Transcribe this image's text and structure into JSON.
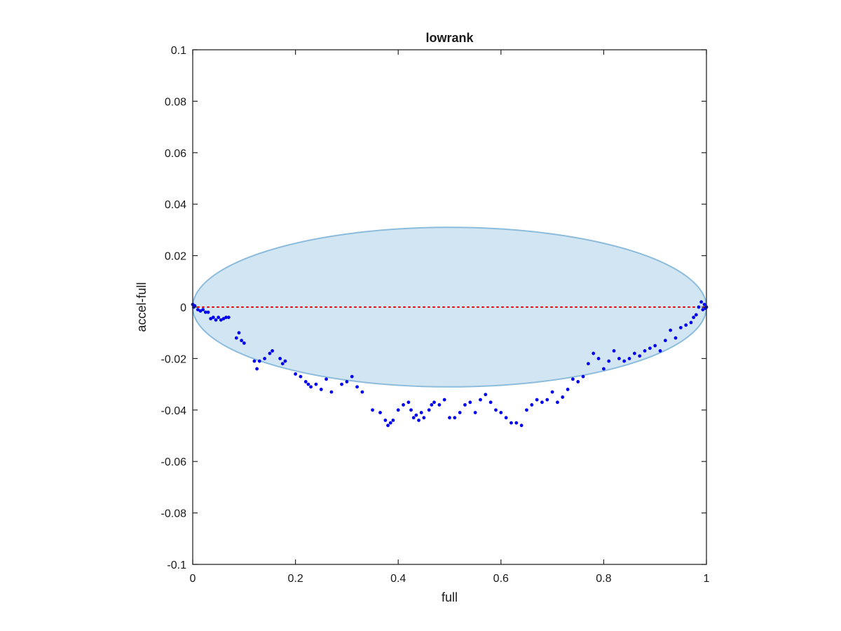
{
  "chart_data": {
    "type": "scatter",
    "title": "lowrank",
    "xlabel": "full",
    "ylabel": "accel-full",
    "xlim": [
      0,
      1
    ],
    "ylim": [
      -0.1,
      0.1
    ],
    "xticks": [
      0,
      0.2,
      0.4,
      0.6,
      0.8,
      1
    ],
    "xtick_labels": [
      "0",
      "0.2",
      "0.4",
      "0.6",
      "0.8",
      "1"
    ],
    "yticks": [
      -0.1,
      -0.08,
      -0.06,
      -0.04,
      -0.02,
      0,
      0.02,
      0.04,
      0.06,
      0.08,
      0.1
    ],
    "ytick_labels": [
      "-0.1",
      "-0.08",
      "-0.06",
      "-0.04",
      "-0.02",
      "0",
      "0.02",
      "0.04",
      "0.06",
      "0.08",
      "0.1"
    ],
    "grid": false,
    "reference_line": {
      "y": 0,
      "color": "#e8000b",
      "style": "dotted"
    },
    "ellipse": {
      "cx": 0.5,
      "cy": 0,
      "rx": 0.5,
      "ry": 0.031,
      "fill": "#d2e5f2",
      "stroke": "#8cbcdc"
    },
    "series": [
      {
        "color": "#0000ee",
        "x": [
          0.0,
          0.002,
          0.004,
          0.01,
          0.015,
          0.02,
          0.025,
          0.03,
          0.035,
          0.04,
          0.045,
          0.05,
          0.055,
          0.06,
          0.065,
          0.07,
          0.085,
          0.09,
          0.095,
          0.1,
          0.12,
          0.125,
          0.13,
          0.14,
          0.15,
          0.155,
          0.17,
          0.175,
          0.18,
          0.2,
          0.21,
          0.22,
          0.225,
          0.23,
          0.24,
          0.25,
          0.26,
          0.27,
          0.29,
          0.3,
          0.31,
          0.32,
          0.33,
          0.35,
          0.365,
          0.375,
          0.38,
          0.385,
          0.39,
          0.4,
          0.41,
          0.42,
          0.425,
          0.43,
          0.435,
          0.44,
          0.445,
          0.45,
          0.46,
          0.465,
          0.47,
          0.48,
          0.49,
          0.5,
          0.51,
          0.52,
          0.53,
          0.54,
          0.55,
          0.56,
          0.57,
          0.58,
          0.59,
          0.6,
          0.61,
          0.62,
          0.63,
          0.64,
          0.65,
          0.66,
          0.67,
          0.68,
          0.69,
          0.7,
          0.71,
          0.72,
          0.73,
          0.74,
          0.75,
          0.76,
          0.77,
          0.78,
          0.79,
          0.8,
          0.81,
          0.82,
          0.83,
          0.84,
          0.85,
          0.86,
          0.87,
          0.88,
          0.89,
          0.9,
          0.91,
          0.92,
          0.93,
          0.94,
          0.95,
          0.96,
          0.97,
          0.975,
          0.98,
          0.985,
          0.99,
          0.993,
          0.996,
          0.998,
          1.0
        ],
        "y": [
          0.001,
          0.0,
          0.0005,
          -0.001,
          -0.0015,
          -0.001,
          -0.002,
          -0.002,
          -0.0045,
          -0.004,
          -0.005,
          -0.004,
          -0.005,
          -0.0045,
          -0.004,
          -0.004,
          -0.012,
          -0.01,
          -0.013,
          -0.014,
          -0.021,
          -0.024,
          -0.021,
          -0.02,
          -0.018,
          -0.017,
          -0.02,
          -0.022,
          -0.021,
          -0.026,
          -0.027,
          -0.029,
          -0.03,
          -0.031,
          -0.03,
          -0.032,
          -0.028,
          -0.033,
          -0.03,
          -0.029,
          -0.027,
          -0.031,
          -0.033,
          -0.04,
          -0.041,
          -0.044,
          -0.046,
          -0.045,
          -0.044,
          -0.04,
          -0.038,
          -0.037,
          -0.04,
          -0.043,
          -0.042,
          -0.044,
          -0.041,
          -0.043,
          -0.04,
          -0.038,
          -0.037,
          -0.038,
          -0.036,
          -0.043,
          -0.043,
          -0.041,
          -0.038,
          -0.037,
          -0.041,
          -0.036,
          -0.034,
          -0.037,
          -0.04,
          -0.041,
          -0.043,
          -0.045,
          -0.045,
          -0.046,
          -0.04,
          -0.038,
          -0.036,
          -0.037,
          -0.036,
          -0.033,
          -0.037,
          -0.035,
          -0.032,
          -0.028,
          -0.029,
          -0.027,
          -0.022,
          -0.018,
          -0.02,
          -0.024,
          -0.021,
          -0.017,
          -0.02,
          -0.021,
          -0.02,
          -0.018,
          -0.019,
          -0.017,
          -0.016,
          -0.015,
          -0.017,
          -0.013,
          -0.009,
          -0.012,
          -0.008,
          -0.007,
          -0.006,
          -0.004,
          -0.003,
          0.0,
          0.002,
          -0.001,
          0.001,
          -0.0005,
          0.0
        ]
      }
    ]
  }
}
